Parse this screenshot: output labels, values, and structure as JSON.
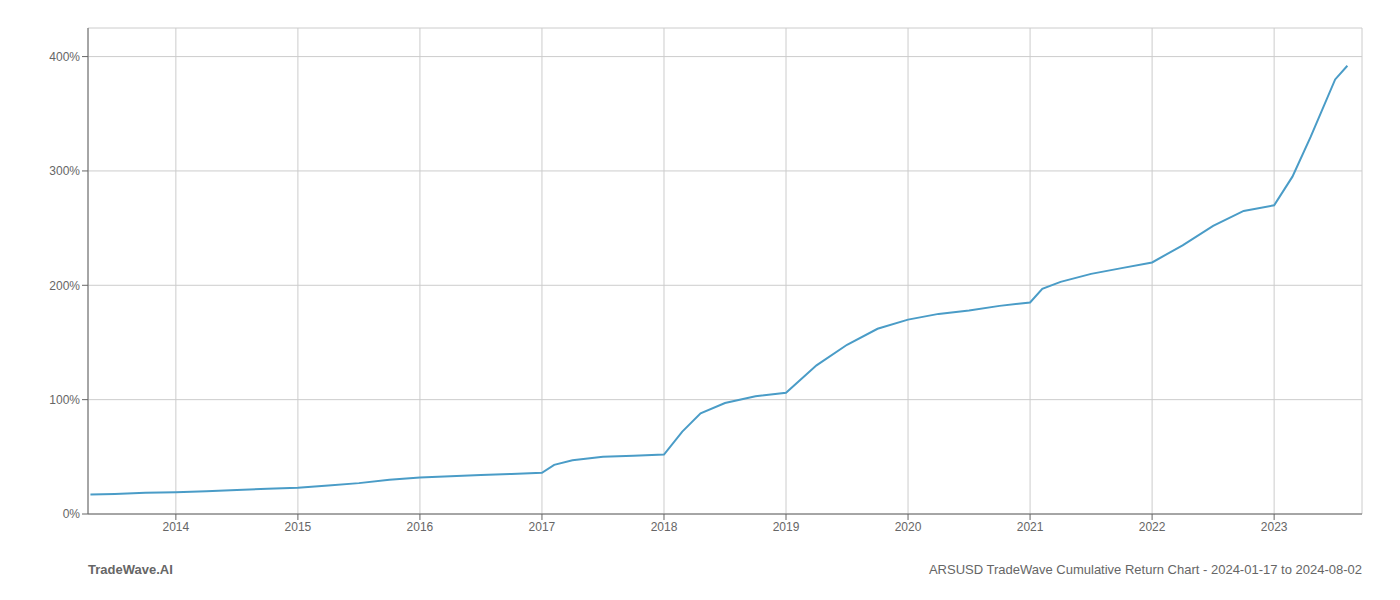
{
  "chart_data": {
    "type": "line",
    "title": "ARSUSD TradeWave Cumulative Return Chart - 2024-01-17 to 2024-08-02",
    "annotations": [
      "TradeWave.AI"
    ],
    "color": "#4a9cc7",
    "grid": true,
    "x": [
      2013.3,
      2013.5,
      2013.75,
      2014.0,
      2014.25,
      2014.5,
      2014.75,
      2015.0,
      2015.25,
      2015.5,
      2015.75,
      2016.0,
      2016.25,
      2016.5,
      2016.75,
      2017.0,
      2017.1,
      2017.25,
      2017.5,
      2017.75,
      2018.0,
      2018.15,
      2018.3,
      2018.5,
      2018.75,
      2019.0,
      2019.25,
      2019.5,
      2019.75,
      2020.0,
      2020.25,
      2020.5,
      2020.75,
      2021.0,
      2021.1,
      2021.25,
      2021.5,
      2021.75,
      2022.0,
      2022.25,
      2022.5,
      2022.75,
      2023.0,
      2023.15,
      2023.3,
      2023.5,
      2023.6
    ],
    "values": [
      17,
      17.5,
      18.5,
      19,
      20,
      21,
      22,
      23,
      25,
      27,
      30,
      32,
      33,
      34,
      35,
      36,
      43,
      47,
      50,
      51,
      52,
      72,
      88,
      97,
      103,
      106,
      130,
      148,
      162,
      170,
      175,
      178,
      182,
      185,
      197,
      203,
      210,
      215,
      220,
      235,
      252,
      265,
      270,
      295,
      330,
      380,
      392
    ],
    "xlim": [
      2013.28,
      2023.72
    ],
    "ylim": [
      0,
      425
    ],
    "xticks": [
      2014,
      2015,
      2016,
      2017,
      2018,
      2019,
      2020,
      2021,
      2022,
      2023
    ],
    "yticks": [
      {
        "value": 0,
        "label": "0%"
      },
      {
        "value": 100,
        "label": "100%"
      },
      {
        "value": 200,
        "label": "200%"
      },
      {
        "value": 300,
        "label": "300%"
      },
      {
        "value": 400,
        "label": "400%"
      }
    ]
  }
}
